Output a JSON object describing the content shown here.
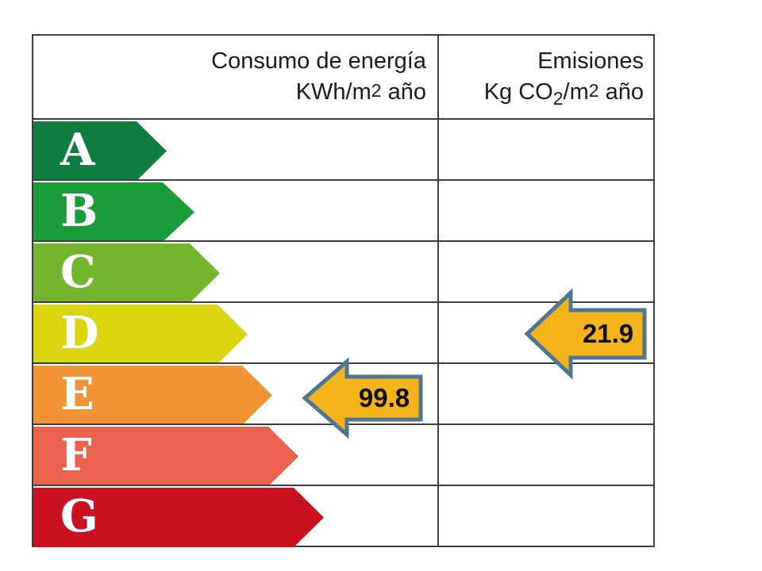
{
  "header": {
    "consumption": {
      "line1": "Consumo de energía",
      "unit_prefix": "KWh/m",
      "unit_sup": "2",
      "unit_suffix": " año"
    },
    "emissions": {
      "line1": "Emisiones",
      "unit_prefix": "Kg CO",
      "unit_sub": "2",
      "unit_mid": "/m",
      "unit_sup": "2",
      "unit_suffix": " año"
    }
  },
  "ratings": [
    {
      "label": "A",
      "color": "#0e7d3f",
      "body": 130,
      "total": 170
    },
    {
      "label": "B",
      "color": "#1b9c3a",
      "body": 163,
      "total": 205
    },
    {
      "label": "C",
      "color": "#73b52d",
      "body": 197,
      "total": 237
    },
    {
      "label": "D",
      "color": "#dcd411",
      "body": 232,
      "total": 272
    },
    {
      "label": "E",
      "color": "#f09435",
      "body": 263,
      "total": 303
    },
    {
      "label": "F",
      "color": "#ea624c",
      "body": 296,
      "total": 336
    },
    {
      "label": "G",
      "color": "#ca1120",
      "body": 328,
      "total": 368
    }
  ],
  "indicators": {
    "consumption": {
      "value": "99.8",
      "rating_row": "E"
    },
    "emissions": {
      "value": "21.9",
      "rating_row": "D"
    }
  },
  "colors": {
    "indicator_fill": "#f2b31b",
    "indicator_border": "#4e7496",
    "grid": "#3d3d3d",
    "band_letter": "#ffffff",
    "header_text": "#1c1c1c",
    "background": "#ffffff"
  },
  "chart_data": {
    "type": "table",
    "title": "",
    "columns": [
      "Consumo de energía KWh/m2 año",
      "Emisiones Kg CO2/m2 año"
    ],
    "scale": [
      "A",
      "B",
      "C",
      "D",
      "E",
      "F",
      "G"
    ],
    "consumption": {
      "value": 99.8,
      "unit": "KWh/m2 año",
      "rating_row": "E"
    },
    "emissions": {
      "value": 21.9,
      "unit": "Kg CO2/m2 año",
      "rating_row": "D"
    },
    "legend_position": "none",
    "grid": true
  }
}
